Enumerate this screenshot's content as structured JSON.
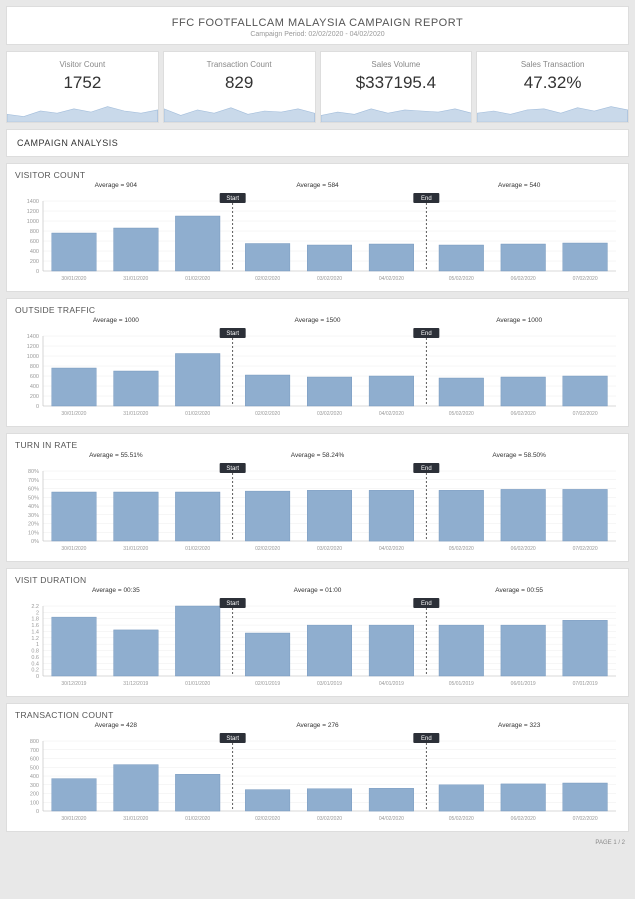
{
  "header": {
    "title": "FFC FOOTFALLCAM MALAYSIA CAMPAIGN REPORT",
    "subtitle": "Campaign Period: 02/02/2020 - 04/02/2020"
  },
  "kpis": [
    {
      "label": "Visitor Count",
      "value": "1752",
      "spark": [
        0.35,
        0.25,
        0.5,
        0.4,
        0.6,
        0.45,
        0.7,
        0.5,
        0.4,
        0.55
      ]
    },
    {
      "label": "Transaction Count",
      "value": "829",
      "spark": [
        0.6,
        0.3,
        0.55,
        0.4,
        0.65,
        0.35,
        0.5,
        0.45,
        0.6,
        0.4
      ]
    },
    {
      "label": "Sales Volume",
      "value": "$337195.4",
      "spark": [
        0.3,
        0.45,
        0.35,
        0.6,
        0.4,
        0.55,
        0.5,
        0.45,
        0.6,
        0.4
      ]
    },
    {
      "label": "Sales Transaction",
      "value": "47.32%",
      "spark": [
        0.4,
        0.5,
        0.35,
        0.55,
        0.6,
        0.4,
        0.65,
        0.5,
        0.7,
        0.55
      ]
    }
  ],
  "section_label": "CAMPAIGN ANALYSIS",
  "colors": {
    "bar_fill": "#8faecf",
    "bar_stroke": "#6b8fb8",
    "spark_fill": "#c9d9ea",
    "spark_stroke": "#a5bfdc",
    "badge": "#2c3038"
  },
  "charts": [
    {
      "title": "VISITOR COUNT",
      "averages": [
        "Average = 904",
        "Average = 584",
        "Average = 540"
      ],
      "ymax": 1400,
      "ystep": 200,
      "formatTick": "int",
      "categories": [
        "30/01/2020",
        "31/01/2020",
        "01/02/2020",
        "02/02/2020",
        "03/02/2020",
        "04/02/2020",
        "05/02/2020",
        "06/02/2020",
        "07/02/2020"
      ],
      "values": [
        760,
        860,
        1100,
        550,
        520,
        540,
        520,
        540,
        560
      ]
    },
    {
      "title": "OUTSIDE TRAFFIC",
      "averages": [
        "Average = 1000",
        "Average = 1500",
        "Average = 1000"
      ],
      "ymax": 1400,
      "ystep": 200,
      "formatTick": "int",
      "categories": [
        "30/01/2020",
        "31/01/2020",
        "01/02/2020",
        "02/02/2020",
        "03/02/2020",
        "04/02/2020",
        "05/02/2020",
        "06/02/2020",
        "07/02/2020"
      ],
      "values": [
        760,
        700,
        1050,
        620,
        580,
        600,
        560,
        580,
        600
      ]
    },
    {
      "title": "TURN IN RATE",
      "averages": [
        "Average = 55.51%",
        "Average = 58.24%",
        "Average = 58.50%"
      ],
      "ymax": 80,
      "ystep": 10,
      "formatTick": "pct",
      "categories": [
        "30/01/2020",
        "31/01/2020",
        "01/02/2020",
        "02/02/2020",
        "03/02/2020",
        "04/02/2020",
        "05/02/2020",
        "06/02/2020",
        "07/02/2020"
      ],
      "values": [
        56,
        56,
        56,
        57,
        58,
        58,
        58,
        59,
        59
      ]
    },
    {
      "title": "VISIT DURATION",
      "averages": [
        "Average = 00:35",
        "Average = 01:00",
        "Average = 00:55"
      ],
      "ymax": 2.2,
      "ystep": 0.2,
      "formatTick": "dec",
      "categories": [
        "30/12/2019",
        "31/12/2019",
        "01/01/2020",
        "02/01/2019",
        "03/01/2019",
        "04/01/2019",
        "05/01/2019",
        "06/01/2019",
        "07/01/2019"
      ],
      "values": [
        1.85,
        1.45,
        2.2,
        1.35,
        1.6,
        1.6,
        1.6,
        1.6,
        1.75
      ]
    },
    {
      "title": "TRANSACTION COUNT",
      "averages": [
        "Average = 428",
        "Average = 276",
        "Average = 323"
      ],
      "ymax": 800,
      "ystep": 100,
      "formatTick": "int",
      "categories": [
        "30/01/2020",
        "31/01/2020",
        "01/02/2020",
        "02/02/2020",
        "03/02/2020",
        "04/02/2020",
        "05/02/2020",
        "06/02/2020",
        "07/02/2020"
      ],
      "values": [
        370,
        530,
        420,
        245,
        255,
        260,
        300,
        310,
        320
      ]
    }
  ],
  "footer": "PAGE 1 / 2"
}
